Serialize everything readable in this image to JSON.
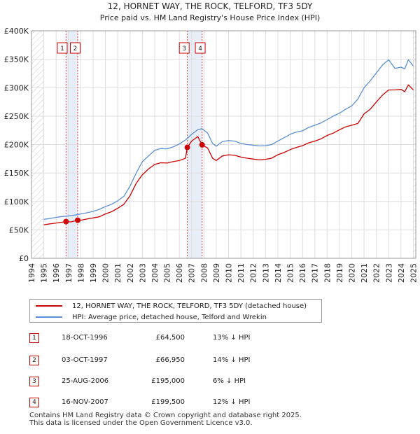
{
  "chart_data": {
    "type": "line",
    "title": "12, HORNET WAY, THE ROCK, TELFORD, TF3 5DY",
    "subtitle": "Price paid vs. HM Land Registry's House Price Index (HPI)",
    "xlabel": "",
    "ylabel": "",
    "xlim": [
      1994,
      2025.2
    ],
    "ylim": [
      0,
      400000
    ],
    "y_ticks": [
      0,
      50000,
      100000,
      150000,
      200000,
      250000,
      300000,
      350000,
      400000
    ],
    "y_tick_labels": [
      "£0",
      "£50K",
      "£100K",
      "£150K",
      "£200K",
      "£250K",
      "£300K",
      "£350K",
      "£400K"
    ],
    "x_ticks": [
      1994,
      1995,
      1996,
      1997,
      1998,
      1999,
      2000,
      2001,
      2002,
      2003,
      2004,
      2005,
      2006,
      2007,
      2008,
      2009,
      2010,
      2011,
      2012,
      2013,
      2014,
      2015,
      2016,
      2017,
      2018,
      2019,
      2020,
      2021,
      2022,
      2023,
      2024,
      2025
    ],
    "x_tick_labels": [
      "1994",
      "1995",
      "1996",
      "1997",
      "1998",
      "1999",
      "2000",
      "2001",
      "2002",
      "2003",
      "2004",
      "2005",
      "2006",
      "2007",
      "2008",
      "2009",
      "2010",
      "2011",
      "2012",
      "2013",
      "2014",
      "2015",
      "2016",
      "2017",
      "2018",
      "2019",
      "2020",
      "2021",
      "2022",
      "2023",
      "2024",
      "2025"
    ],
    "grid": true,
    "hatched_ranges": [
      [
        1994,
        1995
      ],
      [
        2025,
        2025.2
      ]
    ],
    "shaded_bands": [
      [
        1996.8,
        1997.75
      ],
      [
        2006.65,
        2007.85
      ]
    ],
    "series": [
      {
        "name": "12, HORNET WAY, THE ROCK, TELFORD, TF3 5DY (detached house)",
        "color": "#cc0000",
        "x": [
          1995.0,
          1995.5,
          1996.0,
          1996.5,
          1996.8,
          1997.2,
          1997.75,
          1998.0,
          1998.5,
          1999.0,
          1999.5,
          2000.0,
          2000.5,
          2001.0,
          2001.5,
          2002.0,
          2002.5,
          2003.0,
          2003.5,
          2004.0,
          2004.5,
          2005.0,
          2005.5,
          2006.0,
          2006.5,
          2006.65,
          2007.0,
          2007.5,
          2007.85,
          2008.3,
          2008.7,
          2009.0,
          2009.5,
          2010.0,
          2010.5,
          2011.0,
          2011.5,
          2012.0,
          2012.5,
          2013.0,
          2013.5,
          2014.0,
          2014.5,
          2015.0,
          2015.5,
          2016.0,
          2016.5,
          2017.0,
          2017.5,
          2018.0,
          2018.5,
          2019.0,
          2019.5,
          2020.0,
          2020.5,
          2021.0,
          2021.5,
          2022.0,
          2022.5,
          2023.0,
          2023.5,
          2024.0,
          2024.3,
          2024.6,
          2025.0
        ],
        "values": [
          59000,
          60500,
          62000,
          63500,
          64500,
          64000,
          66950,
          67000,
          69000,
          71000,
          73000,
          78000,
          82000,
          88000,
          95000,
          110000,
          132000,
          147000,
          157000,
          165000,
          168000,
          167500,
          170000,
          172000,
          176000,
          195000,
          206000,
          214000,
          199500,
          194000,
          176000,
          172000,
          180000,
          182000,
          181000,
          178000,
          176000,
          174500,
          173000,
          174000,
          176000,
          182000,
          186000,
          191000,
          195000,
          198000,
          203000,
          206000,
          210000,
          216000,
          220000,
          226000,
          231000,
          234000,
          237000,
          254000,
          262000,
          275000,
          287000,
          296000,
          296000,
          297000,
          293000,
          305000,
          296000
        ]
      },
      {
        "name": "HPI: Average price, detached house, Telford and Wrekin",
        "color": "#5b8fd1",
        "x": [
          1995.0,
          1995.5,
          1996.0,
          1996.5,
          1997.0,
          1997.5,
          1998.0,
          1998.5,
          1999.0,
          1999.5,
          2000.0,
          2000.5,
          2001.0,
          2001.5,
          2002.0,
          2002.5,
          2003.0,
          2003.5,
          2004.0,
          2004.5,
          2005.0,
          2005.5,
          2006.0,
          2006.5,
          2007.0,
          2007.5,
          2007.85,
          2008.3,
          2008.7,
          2009.0,
          2009.5,
          2010.0,
          2010.5,
          2011.0,
          2011.5,
          2012.0,
          2012.5,
          2013.0,
          2013.5,
          2014.0,
          2014.5,
          2015.0,
          2015.5,
          2016.0,
          2016.5,
          2017.0,
          2017.5,
          2018.0,
          2018.5,
          2019.0,
          2019.5,
          2020.0,
          2020.5,
          2021.0,
          2021.5,
          2022.0,
          2022.5,
          2023.0,
          2023.5,
          2024.0,
          2024.3,
          2024.6,
          2025.0
        ],
        "values": [
          68500,
          70000,
          72000,
          73500,
          74500,
          76000,
          78000,
          80000,
          82500,
          86000,
          91000,
          95000,
          101000,
          109000,
          127000,
          150000,
          170000,
          180000,
          190000,
          193000,
          192500,
          196000,
          201000,
          208000,
          218000,
          226000,
          228000,
          220000,
          202000,
          197000,
          205000,
          207000,
          206000,
          202000,
          200000,
          199000,
          197500,
          198000,
          200000,
          206000,
          212000,
          218000,
          222000,
          224000,
          230000,
          234000,
          238000,
          244000,
          250000,
          255000,
          262000,
          268000,
          280000,
          300000,
          312000,
          326000,
          340000,
          349000,
          334000,
          336000,
          333000,
          349000,
          338000
        ]
      }
    ],
    "sale_markers": [
      {
        "label": "1",
        "x": 1996.8,
        "value": 64500
      },
      {
        "label": "2",
        "x": 1997.75,
        "value": 66950
      },
      {
        "label": "3",
        "x": 2006.65,
        "value": 195000
      },
      {
        "label": "4",
        "x": 2007.85,
        "value": 199500
      }
    ]
  },
  "legend": {
    "property_label": "12, HORNET WAY, THE ROCK, TELFORD, TF3 5DY (detached house)",
    "hpi_label": "HPI: Average price, detached house, Telford and Wrekin"
  },
  "sales": [
    {
      "num": "1",
      "date": "18-OCT-1996",
      "price": "£64,500",
      "hpi": "13% ↓ HPI"
    },
    {
      "num": "2",
      "date": "03-OCT-1997",
      "price": "£66,950",
      "hpi": "14% ↓ HPI"
    },
    {
      "num": "3",
      "date": "25-AUG-2006",
      "price": "£195,000",
      "hpi": "6% ↓ HPI"
    },
    {
      "num": "4",
      "date": "16-NOV-2007",
      "price": "£199,500",
      "hpi": "12% ↓ HPI"
    }
  ],
  "footer": {
    "line1": "Contains HM Land Registry data © Crown copyright and database right 2025.",
    "line2": "This data is licensed under the Open Government Licence v3.0."
  }
}
